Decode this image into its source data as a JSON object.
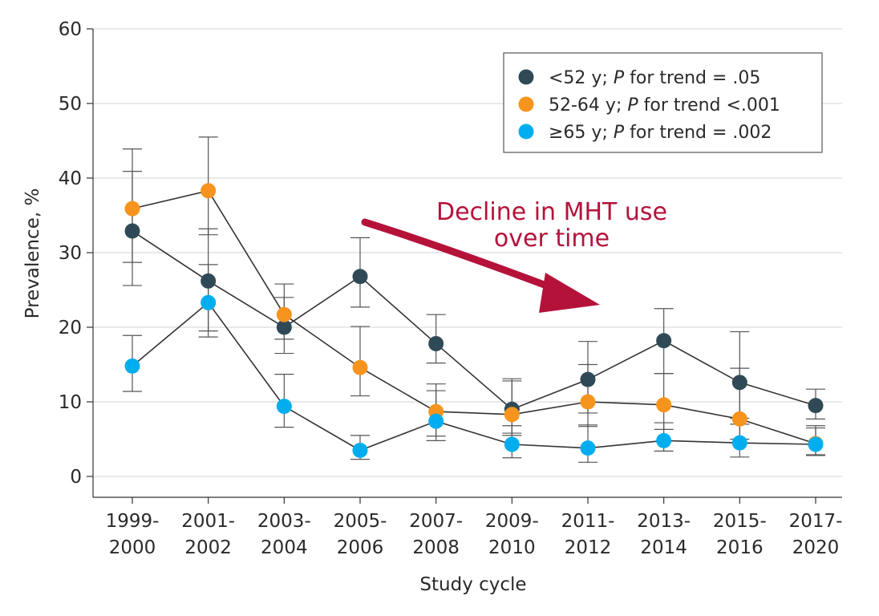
{
  "chart_data": {
    "type": "line",
    "xlabel": "Study cycle",
    "ylabel": "Prevalence, %",
    "ylim": [
      0,
      60
    ],
    "yticks": [
      "0",
      "10",
      "20",
      "30",
      "40",
      "50",
      "60"
    ],
    "grid": true,
    "legend_position": "top-right",
    "categories": [
      [
        "1999-",
        "2000"
      ],
      [
        "2001-",
        "2002"
      ],
      [
        "2003-",
        "2004"
      ],
      [
        "2005-",
        "2006"
      ],
      [
        "2007-",
        "2008"
      ],
      [
        "2009-",
        "2010"
      ],
      [
        "2011-",
        "2012"
      ],
      [
        "2013-",
        "2014"
      ],
      [
        "2015-",
        "2016"
      ],
      [
        "2017-",
        "2020"
      ]
    ],
    "series": [
      {
        "name": "<52 y",
        "trend_label": "; ",
        "p_label": "P",
        "trend_text": " for trend = .05",
        "color": "#2f4a56",
        "values": [
          32.9,
          26.2,
          20.0,
          26.8,
          17.8,
          9.0,
          13.0,
          18.2,
          12.6,
          9.5
        ],
        "ci_low": [
          25.6,
          19.5,
          16.5,
          22.7,
          15.2,
          5.8,
          8.5,
          13.8,
          7.8,
          7.7
        ],
        "ci_high": [
          40.9,
          33.2,
          24.0,
          32.0,
          21.7,
          13.1,
          18.1,
          22.5,
          19.4,
          11.7
        ]
      },
      {
        "name": "52-64 y",
        "trend_label": "; ",
        "p_label": "P",
        "trend_text": " for trend <.001",
        "color": "#f7941d",
        "values": [
          35.9,
          38.3,
          21.7,
          14.6,
          8.7,
          8.3,
          10.0,
          9.6,
          7.7,
          4.4
        ],
        "ci_low": [
          28.7,
          32.4,
          18.4,
          10.8,
          5.4,
          5.5,
          6.7,
          6.3,
          5.0,
          2.8
        ],
        "ci_high": [
          43.9,
          45.5,
          25.8,
          20.1,
          12.4,
          12.8,
          15.0,
          13.8,
          14.5,
          6.8
        ]
      },
      {
        "name": "≥65 y",
        "trend_label": "; ",
        "p_label": "P",
        "trend_text": " for trend = .002",
        "color": "#00aeef",
        "values": [
          14.8,
          23.3,
          9.4,
          3.5,
          7.4,
          4.3,
          3.8,
          4.8,
          4.5,
          4.3
        ],
        "ci_low": [
          11.4,
          18.7,
          6.6,
          2.3,
          4.8,
          2.5,
          1.9,
          3.4,
          2.6,
          2.9
        ],
        "ci_high": [
          18.9,
          28.4,
          13.7,
          5.5,
          11.5,
          6.8,
          6.9,
          7.2,
          7.0,
          6.5
        ]
      }
    ],
    "annotation": {
      "lines": [
        "Decline in MHT use",
        "over time"
      ],
      "color": "#b5123a"
    }
  }
}
